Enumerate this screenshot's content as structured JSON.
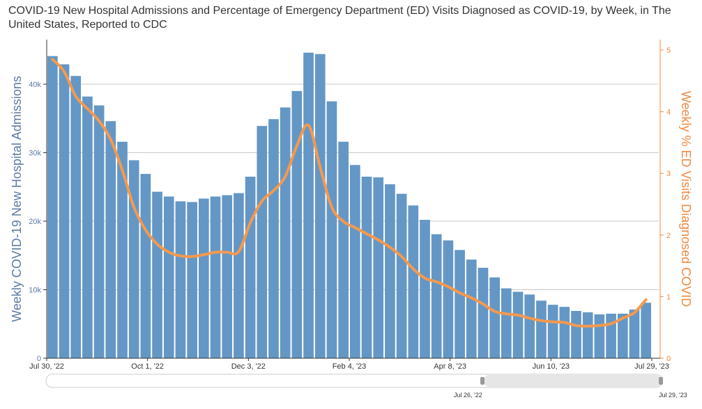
{
  "title": "COVID-19 New Hospital Admissions and Percentage of Emergency Department (ED) Visits Diagnosed as COVID-19, by Week, in The United States, Reported to CDC",
  "navigator": {
    "range_start_label": "Jul 26, '22",
    "range_end_label": "Jul 29, '23"
  },
  "colors": {
    "bars": "#6497c5",
    "line": "#f5994e",
    "left_axis_text": "#5b7aa6",
    "right_axis_text": "#f0883e",
    "grid": "#c8c8c8"
  },
  "chart_data": {
    "type": "bar",
    "x_tick_labels": [
      "Jul 30, '22",
      "Oct 1, '22",
      "Dec 3, '22",
      "Feb 4, '23",
      "Apr 8, '23",
      "Jun 10, '23",
      "Jul 29, '23"
    ],
    "ylabel": "Weekly COVID-19 New Hospital Admissions",
    "y2label": "Weekly % ED Visits Diagnosed COVID",
    "ylim": [
      0,
      46500
    ],
    "y2lim": [
      0,
      5.17
    ],
    "y_ticks": [
      0,
      10000,
      20000,
      30000,
      40000
    ],
    "y_tick_labels": [
      "0",
      "10k",
      "20k",
      "30k",
      "40k"
    ],
    "y2_ticks": [
      0,
      1,
      2,
      3,
      4,
      5
    ],
    "y2_tick_labels": [
      "0",
      "1",
      "2",
      "3",
      "4",
      "5"
    ],
    "grid": true,
    "series": [
      {
        "name": "Weekly COVID-19 New Hospital Admissions",
        "type": "bar",
        "values": [
          44100,
          42900,
          41200,
          38200,
          36900,
          34600,
          31600,
          28900,
          26900,
          24300,
          23600,
          22900,
          22800,
          23300,
          23600,
          23800,
          24100,
          26500,
          33900,
          34900,
          36600,
          39000,
          44600,
          44400,
          37500,
          31600,
          28200,
          26500,
          26400,
          25400,
          24000,
          22300,
          20200,
          18100,
          17200,
          15800,
          14400,
          13200,
          11800,
          10200,
          9700,
          9300,
          8400,
          7800,
          7500,
          6900,
          6700,
          6400,
          6500,
          6500,
          7100,
          8100
        ]
      },
      {
        "name": "Weekly % ED Visits Diagnosed COVID",
        "type": "line",
        "values": [
          4.85,
          4.65,
          4.25,
          4.05,
          3.85,
          3.55,
          3.05,
          2.45,
          2.08,
          1.85,
          1.72,
          1.66,
          1.65,
          1.68,
          1.72,
          1.72,
          1.73,
          2.2,
          2.55,
          2.72,
          2.95,
          3.45,
          3.78,
          3.1,
          2.45,
          2.22,
          2.12,
          2.02,
          1.92,
          1.8,
          1.65,
          1.45,
          1.3,
          1.24,
          1.16,
          1.06,
          0.98,
          0.88,
          0.76,
          0.72,
          0.7,
          0.65,
          0.61,
          0.59,
          0.58,
          0.53,
          0.52,
          0.53,
          0.56,
          0.65,
          0.74,
          0.95
        ]
      }
    ]
  }
}
